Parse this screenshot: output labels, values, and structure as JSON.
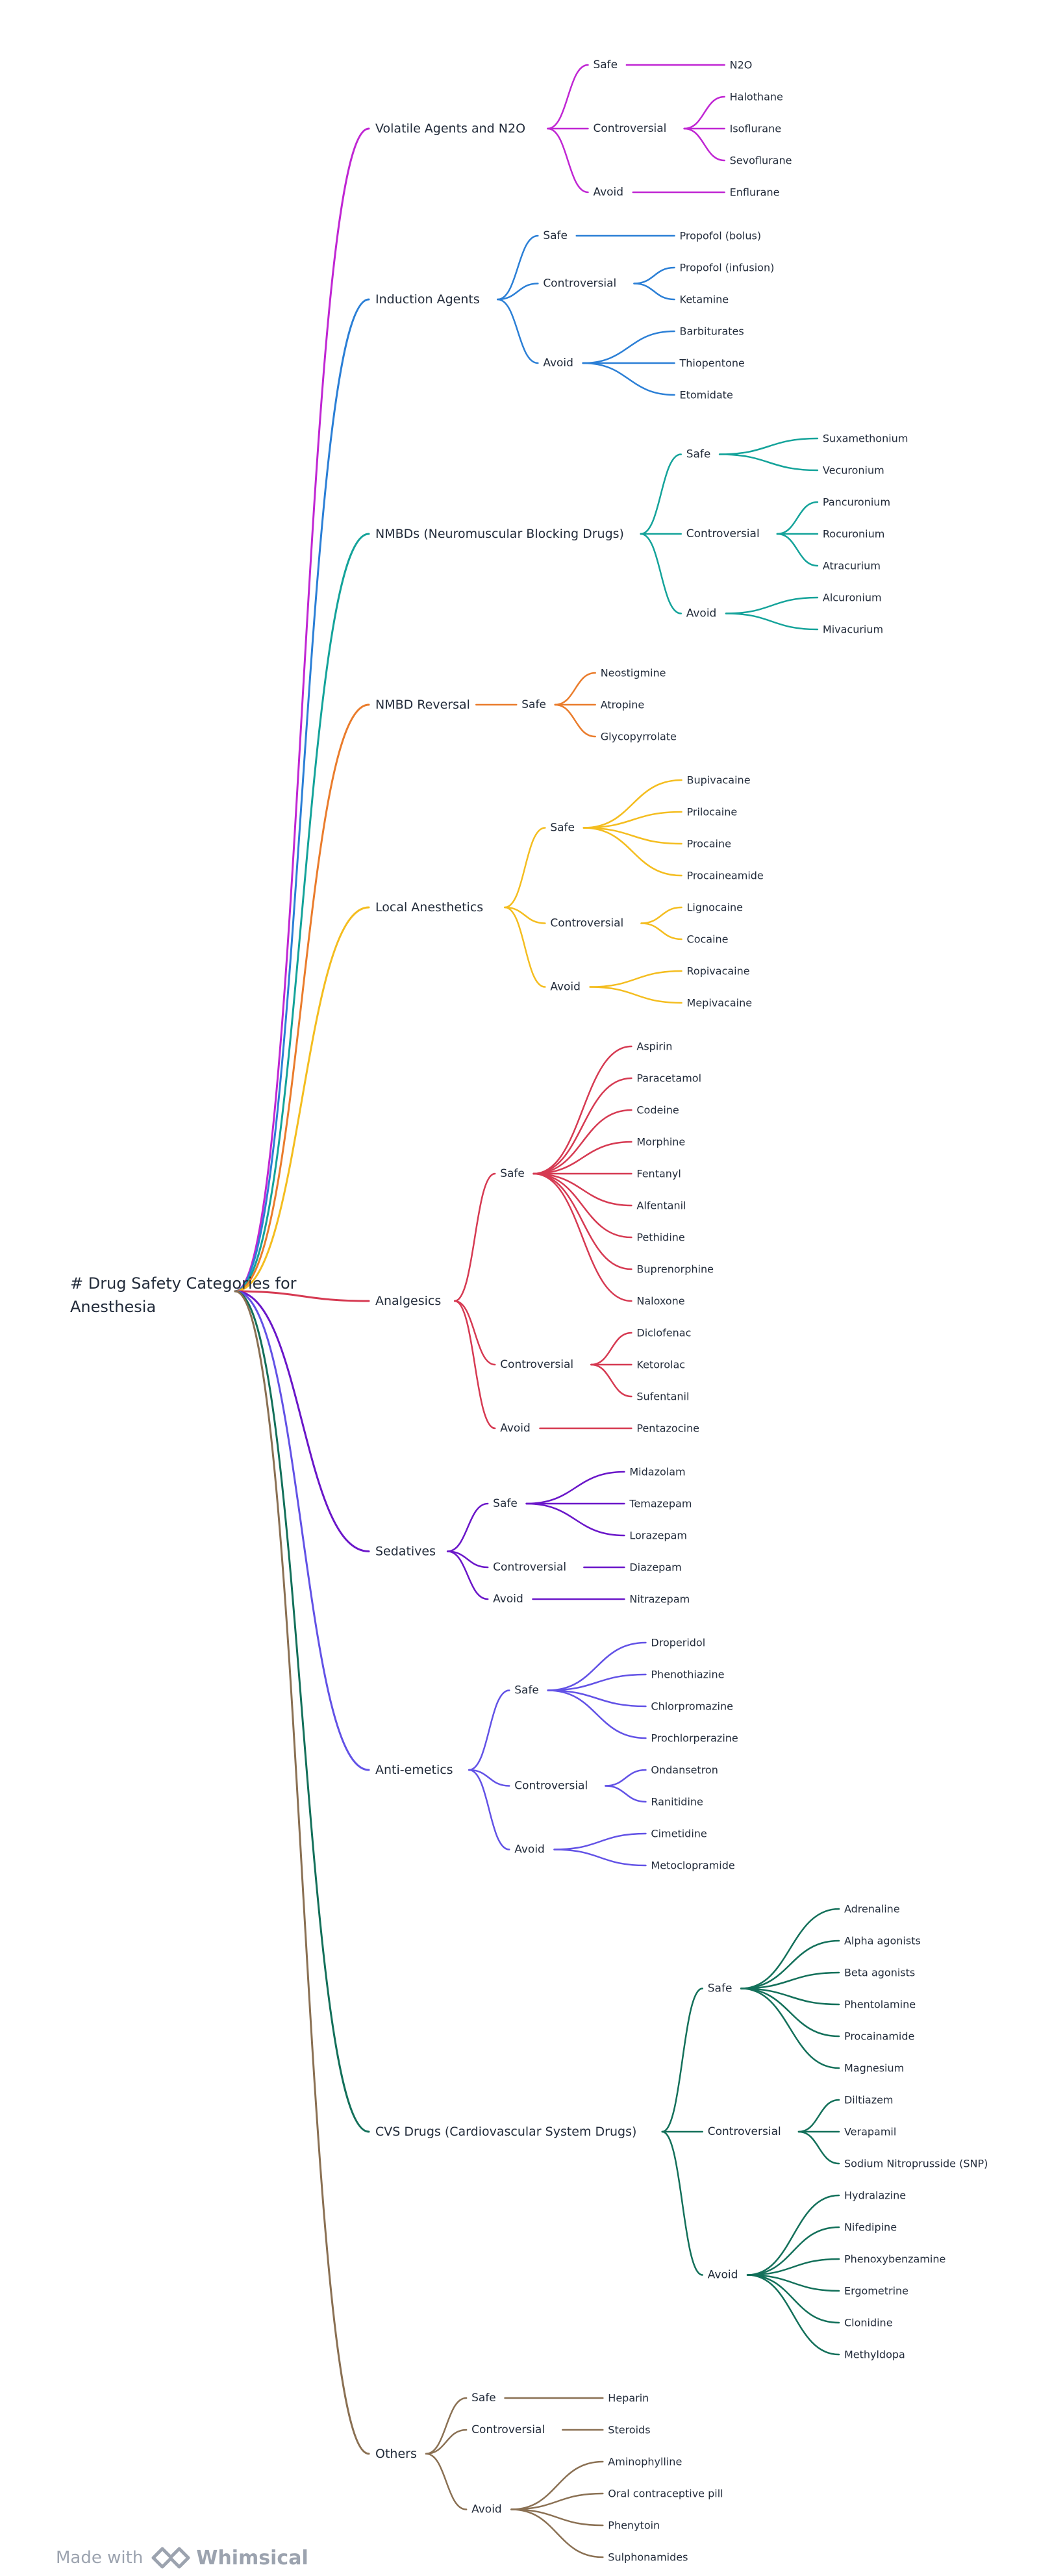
{
  "root": "# Drug Safety Categories for Anesthesia",
  "footer": {
    "made_with": "Made with",
    "brand": "Whimsical"
  },
  "branches": [
    {
      "label": "Volatile Agents and N2O",
      "color": "#c026d3",
      "groups": [
        {
          "label": "Safe",
          "items": [
            "N2O"
          ]
        },
        {
          "label": "Controversial",
          "items": [
            "Halothane",
            "Isoflurane",
            "Sevoflurane"
          ]
        },
        {
          "label": "Avoid",
          "items": [
            "Enflurane"
          ]
        }
      ]
    },
    {
      "label": "Induction Agents",
      "color": "#2b7fd6",
      "groups": [
        {
          "label": "Safe",
          "items": [
            "Propofol (bolus)"
          ]
        },
        {
          "label": "Controversial",
          "items": [
            "Propofol (infusion)",
            "Ketamine"
          ]
        },
        {
          "label": "Avoid",
          "items": [
            "Barbiturates",
            "Thiopentone",
            "Etomidate"
          ]
        }
      ]
    },
    {
      "label": "NMBDs (Neuromuscular Blocking Drugs)",
      "color": "#14a39a",
      "groups": [
        {
          "label": "Safe",
          "items": [
            "Suxamethonium",
            "Vecuronium"
          ]
        },
        {
          "label": "Controversial",
          "items": [
            "Pancuronium",
            "Rocuronium",
            "Atracurium"
          ]
        },
        {
          "label": "Avoid",
          "items": [
            "Alcuronium",
            "Mivacurium"
          ]
        }
      ]
    },
    {
      "label": "NMBD Reversal",
      "color": "#ea7c2c",
      "groups": [
        {
          "label": "Safe",
          "items": [
            "Neostigmine",
            "Atropine",
            "Glycopyrrolate"
          ]
        }
      ]
    },
    {
      "label": "Local Anesthetics",
      "color": "#f4bd1f",
      "groups": [
        {
          "label": "Safe",
          "items": [
            "Bupivacaine",
            "Prilocaine",
            "Procaine",
            "Procaineamide"
          ]
        },
        {
          "label": "Controversial",
          "items": [
            "Lignocaine",
            "Cocaine"
          ]
        },
        {
          "label": "Avoid",
          "items": [
            "Ropivacaine",
            "Mepivacaine"
          ]
        }
      ]
    },
    {
      "label": "Analgesics",
      "color": "#d63a52",
      "groups": [
        {
          "label": "Safe",
          "items": [
            "Aspirin",
            "Paracetamol",
            "Codeine",
            "Morphine",
            "Fentanyl",
            "Alfentanil",
            "Pethidine",
            "Buprenorphine",
            "Naloxone"
          ]
        },
        {
          "label": "Controversial",
          "items": [
            "Diclofenac",
            "Ketorolac",
            "Sufentanil"
          ]
        },
        {
          "label": "Avoid",
          "items": [
            "Pentazocine"
          ]
        }
      ]
    },
    {
      "label": "Sedatives",
      "color": "#6a16c9",
      "groups": [
        {
          "label": "Safe",
          "items": [
            "Midazolam",
            "Temazepam",
            "Lorazepam"
          ]
        },
        {
          "label": "Controversial",
          "items": [
            "Diazepam"
          ]
        },
        {
          "label": "Avoid",
          "items": [
            "Nitrazepam"
          ]
        }
      ]
    },
    {
      "label": "Anti-emetics",
      "color": "#6252e6",
      "groups": [
        {
          "label": "Safe",
          "items": [
            "Droperidol",
            "Phenothiazine",
            "Chlorpromazine",
            "Prochlorperazine"
          ]
        },
        {
          "label": "Controversial",
          "items": [
            "Ondansetron",
            "Ranitidine"
          ]
        },
        {
          "label": "Avoid",
          "items": [
            "Cimetidine",
            "Metoclopramide"
          ]
        }
      ]
    },
    {
      "label": "CVS Drugs (Cardiovascular System Drugs)",
      "color": "#13705a",
      "groups": [
        {
          "label": "Safe",
          "items": [
            "Adrenaline",
            "Alpha agonists",
            "Beta agonists",
            "Phentolamine",
            "Procainamide",
            "Magnesium"
          ]
        },
        {
          "label": "Controversial",
          "items": [
            "Diltiazem",
            "Verapamil",
            "Sodium Nitroprusside (SNP)"
          ]
        },
        {
          "label": "Avoid",
          "items": [
            "Hydralazine",
            "Nifedipine",
            "Phenoxybenzamine",
            "Ergometrine",
            "Clonidine",
            "Methyldopa"
          ]
        }
      ]
    },
    {
      "label": "Others",
      "color": "#8a7053",
      "groups": [
        {
          "label": "Safe",
          "items": [
            "Heparin"
          ]
        },
        {
          "label": "Controversial",
          "items": [
            "Steroids"
          ]
        },
        {
          "label": "Avoid",
          "items": [
            "Aminophylline",
            "Oral contraceptive pill",
            "Phenytoin",
            "Sulphonamides"
          ]
        }
      ]
    }
  ]
}
